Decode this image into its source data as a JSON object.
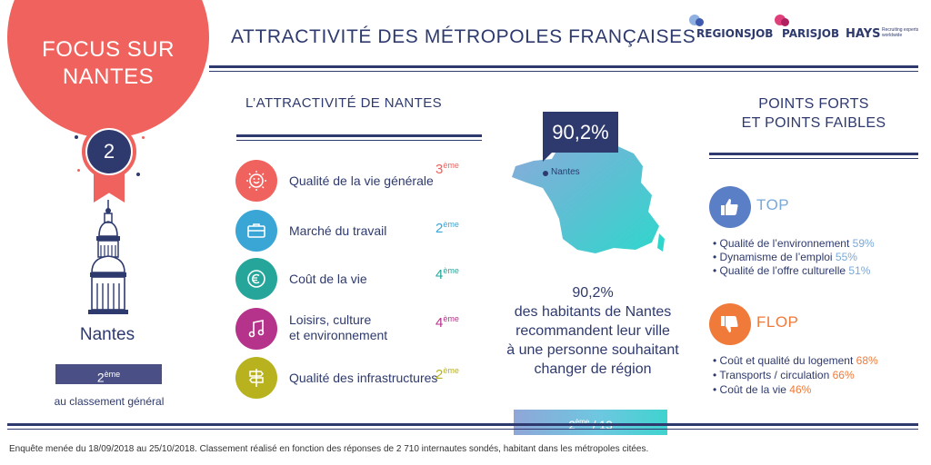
{
  "header": {
    "focus_line1": "FOCUS SUR",
    "focus_line2": "NANTES",
    "title": "ATTRACTIVITÉ DES MÉTROPOLES FRANÇAISES",
    "logos": {
      "regionsjob": "REGIONSJOB",
      "parisjob": "PARISJOB",
      "hays": "HAYS",
      "hays_tagline_1": "Recruiting experts",
      "hays_tagline_2": "worldwide"
    }
  },
  "medal": {
    "rank": "2"
  },
  "city": {
    "name": "Nantes",
    "rank_num": "2",
    "rank_sup": "ème",
    "rank_caption": "au classement général"
  },
  "attractivity": {
    "title": "L’ATTRACTIVITÉ DE NANTES",
    "criteria": [
      {
        "label_1": "Qualité de la vie générale",
        "label_2": "",
        "rank_num": "3",
        "rank_sup": "ème",
        "icon": "smile-sun-icon",
        "color": "#f0625d"
      },
      {
        "label_1": "Marché du travail",
        "label_2": "",
        "rank_num": "2",
        "rank_sup": "ème",
        "icon": "briefcase-icon",
        "color": "#3aa6d6"
      },
      {
        "label_1": "Coût de la vie",
        "label_2": "",
        "rank_num": "4",
        "rank_sup": "ème",
        "icon": "euro-icon",
        "color": "#26a69a"
      },
      {
        "label_1": "Loisirs, culture",
        "label_2": "et environnement",
        "rank_num": "4",
        "rank_sup": "ème",
        "icon": "music-note-icon",
        "color": "#b5338a"
      },
      {
        "label_1": "Qualité des infrastructures",
        "label_2": "",
        "rank_num": "2",
        "rank_sup": "ème",
        "icon": "signpost-icon",
        "color": "#b8b21f"
      }
    ]
  },
  "map": {
    "badge": "90,2%",
    "city_label": "Nantes"
  },
  "recommend": {
    "line1": "90,2%",
    "line2": "des habitants de Nantes",
    "line3": "recommandent leur ville",
    "line4": "à une personne souhaitant",
    "line5": "changer de région",
    "rank_num": "2",
    "rank_sup": "ème",
    "rank_total": "/ 13"
  },
  "points": {
    "title_1": "POINTS FORTS",
    "title_2": "ET POINTS FAIBLES",
    "top_label": "TOP",
    "top_items": [
      {
        "label": "• Qualité de l’environnement",
        "value": "59%"
      },
      {
        "label": "• Dynamisme de l’emploi",
        "value": "55%"
      },
      {
        "label": "• Qualité de l’offre culturelle",
        "value": "51%"
      }
    ],
    "flop_label": "FLOP",
    "flop_items": [
      {
        "label": "• Coût et qualité du logement",
        "value": "68%"
      },
      {
        "label": "• Transports / circulation",
        "value": "66%"
      },
      {
        "label": "• Coût de la vie",
        "value": "46%"
      }
    ]
  },
  "footer": {
    "note": "Enquête menée du 18/09/2018 au 25/10/2018. Classement réalisé en fonction des réponses de 2 710 internautes sondés, habitant dans les métropoles citées."
  },
  "colors": {
    "navy": "#2e3a6e",
    "coral": "#f0625d",
    "top_blue": "#7aa8d8",
    "flop_orange": "#f07a3a"
  }
}
